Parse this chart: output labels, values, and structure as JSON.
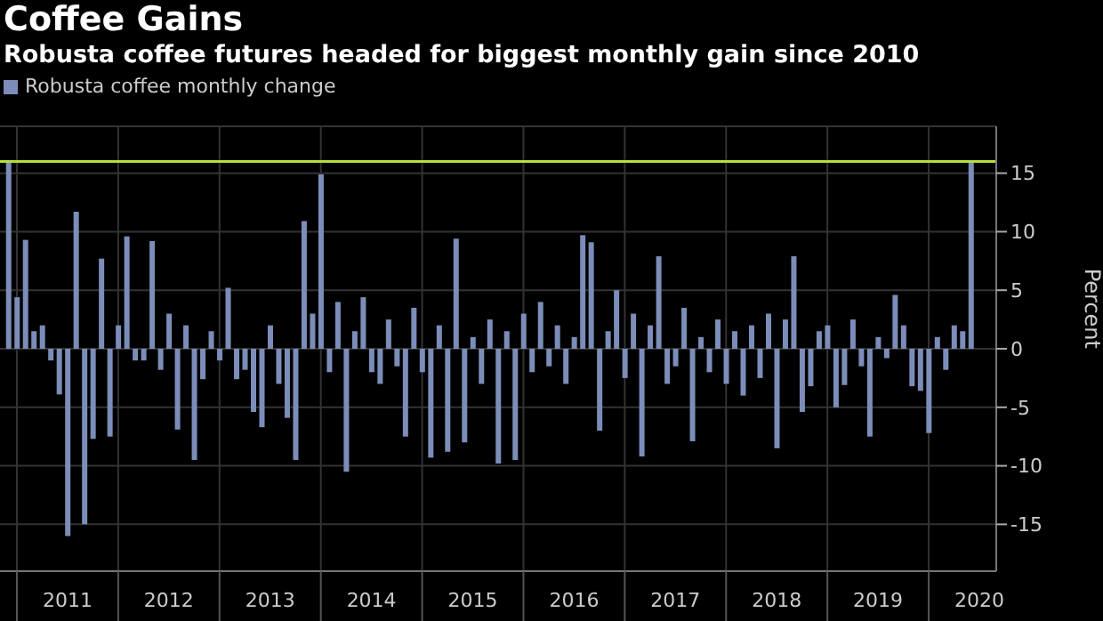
{
  "chart_data": {
    "type": "bar",
    "title": "Coffee Gains",
    "subtitle": "Robusta coffee futures headed for biggest monthly gain since 2010",
    "ylabel": "Percent",
    "x": [
      "2010-12",
      "2011-01",
      "2011-02",
      "2011-03",
      "2011-04",
      "2011-05",
      "2011-06",
      "2011-07",
      "2011-08",
      "2011-09",
      "2011-10",
      "2011-11",
      "2011-12",
      "2012-01",
      "2012-02",
      "2012-03",
      "2012-04",
      "2012-05",
      "2012-06",
      "2012-07",
      "2012-08",
      "2012-09",
      "2012-10",
      "2012-11",
      "2012-12",
      "2013-01",
      "2013-02",
      "2013-03",
      "2013-04",
      "2013-05",
      "2013-06",
      "2013-07",
      "2013-08",
      "2013-09",
      "2013-10",
      "2013-11",
      "2013-12",
      "2014-01",
      "2014-02",
      "2014-03",
      "2014-04",
      "2014-05",
      "2014-06",
      "2014-07",
      "2014-08",
      "2014-09",
      "2014-10",
      "2014-11",
      "2014-12",
      "2015-01",
      "2015-02",
      "2015-03",
      "2015-04",
      "2015-05",
      "2015-06",
      "2015-07",
      "2015-08",
      "2015-09",
      "2015-10",
      "2015-11",
      "2015-12",
      "2016-01",
      "2016-02",
      "2016-03",
      "2016-04",
      "2016-05",
      "2016-06",
      "2016-07",
      "2016-08",
      "2016-09",
      "2016-10",
      "2016-11",
      "2016-12",
      "2017-01",
      "2017-02",
      "2017-03",
      "2017-04",
      "2017-05",
      "2017-06",
      "2017-07",
      "2017-08",
      "2017-09",
      "2017-10",
      "2017-11",
      "2017-12",
      "2018-01",
      "2018-02",
      "2018-03",
      "2018-04",
      "2018-05",
      "2018-06",
      "2018-07",
      "2018-08",
      "2018-09",
      "2018-10",
      "2018-11",
      "2018-12",
      "2019-01",
      "2019-02",
      "2019-03",
      "2019-04",
      "2019-05",
      "2019-06",
      "2019-07",
      "2019-08",
      "2019-09",
      "2019-10",
      "2019-11",
      "2019-12",
      "2020-01",
      "2020-02",
      "2020-03",
      "2020-04",
      "2020-05",
      "2020-06"
    ],
    "series": [
      {
        "name": "Robusta coffee monthly change",
        "color": "#7b8db8",
        "values": [
          16.0,
          4.4,
          9.3,
          1.5,
          2.0,
          -1.0,
          -3.9,
          -16.0,
          11.7,
          -15.0,
          -7.7,
          7.7,
          -7.5,
          2.0,
          9.6,
          -1.0,
          -1.0,
          9.2,
          -1.8,
          3.0,
          -6.9,
          2.0,
          -9.5,
          -2.6,
          1.5,
          -1.0,
          5.2,
          -2.6,
          -1.8,
          -5.4,
          -6.7,
          2.0,
          -3.0,
          -5.9,
          -9.5,
          10.9,
          3.0,
          14.9,
          -2.0,
          4.0,
          -10.5,
          1.5,
          4.4,
          -2.0,
          -3.0,
          2.5,
          -1.5,
          -7.5,
          3.5,
          -2.0,
          -9.3,
          2.0,
          -8.8,
          9.4,
          -8.0,
          1.0,
          -3.0,
          2.5,
          -9.8,
          1.5,
          -9.5,
          3.0,
          -2.0,
          4.0,
          -1.5,
          2.0,
          -3.0,
          1.0,
          9.7,
          9.1,
          -7.0,
          1.5,
          5.0,
          -2.5,
          3.0,
          -9.2,
          2.0,
          7.9,
          -3.0,
          -1.5,
          3.5,
          -7.9,
          1.0,
          -2.0,
          2.5,
          -3.0,
          1.5,
          -4.0,
          2.0,
          -2.5,
          3.0,
          -8.5,
          2.5,
          7.9,
          -5.4,
          -3.2,
          1.5,
          2.0,
          -5.0,
          -3.1,
          2.5,
          -1.5,
          -7.5,
          1.0,
          -0.8,
          4.6,
          2.0,
          -3.2,
          -3.6,
          -7.2,
          1.0,
          -1.8,
          2.0,
          1.5,
          16.0
        ]
      }
    ],
    "xlim": [
      "2010-11",
      "2020-09"
    ],
    "xticks": [
      {
        "value": "2011-01",
        "label": null
      },
      {
        "value": "2011-07",
        "label": "2011"
      },
      {
        "value": "2012-01",
        "label": null
      },
      {
        "value": "2012-07",
        "label": "2012"
      },
      {
        "value": "2013-01",
        "label": null
      },
      {
        "value": "2013-07",
        "label": "2013"
      },
      {
        "value": "2014-01",
        "label": null
      },
      {
        "value": "2014-07",
        "label": "2014"
      },
      {
        "value": "2015-01",
        "label": null
      },
      {
        "value": "2015-07",
        "label": "2015"
      },
      {
        "value": "2016-01",
        "label": null
      },
      {
        "value": "2016-07",
        "label": "2016"
      },
      {
        "value": "2017-01",
        "label": null
      },
      {
        "value": "2017-07",
        "label": "2017"
      },
      {
        "value": "2018-01",
        "label": null
      },
      {
        "value": "2018-07",
        "label": "2018"
      },
      {
        "value": "2019-01",
        "label": null
      },
      {
        "value": "2019-07",
        "label": "2019"
      },
      {
        "value": "2020-01",
        "label": null
      },
      {
        "value": "2020-07",
        "label": "2020"
      }
    ],
    "ylim": [
      -19,
      19
    ],
    "yticks": [
      -15,
      -10,
      -5,
      0,
      5,
      10,
      15
    ],
    "ref_lines": [
      {
        "axis": "y",
        "value": 16,
        "color": "#b5df3c"
      }
    ],
    "grid": true,
    "legend": "top left"
  }
}
